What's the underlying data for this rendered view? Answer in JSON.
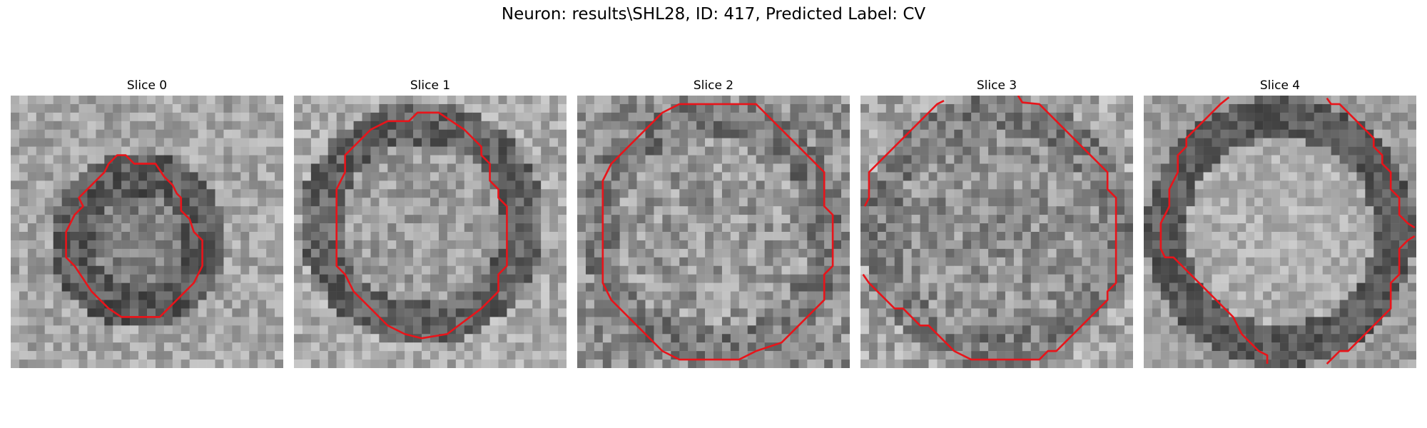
{
  "figure": {
    "title": "Neuron: results\\SHL28, ID: 417, Predicted Label: CV"
  },
  "contour_color": "#e8141a",
  "colormap": "grayscale",
  "panels": [
    {
      "title": "Slice 0"
    },
    {
      "title": "Slice 1"
    },
    {
      "title": "Slice 2"
    },
    {
      "title": "Slice 3"
    },
    {
      "title": "Slice 4"
    }
  ]
}
